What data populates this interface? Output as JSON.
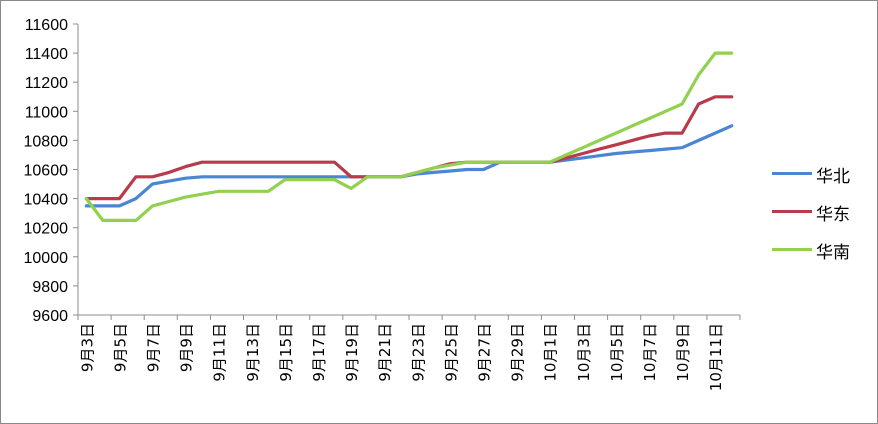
{
  "chart_data": {
    "type": "line",
    "title": "",
    "xlabel": "",
    "ylabel": "",
    "ylim": [
      9600,
      11600
    ],
    "ytick_step": 200,
    "grid": false,
    "legend_position": "right",
    "categories": [
      "9月3日",
      "9月4日",
      "9月5日",
      "9月6日",
      "9月7日",
      "9月8日",
      "9月9日",
      "9月10日",
      "9月11日",
      "9月12日",
      "9月13日",
      "9月14日",
      "9月15日",
      "9月16日",
      "9月17日",
      "9月18日",
      "9月19日",
      "9月20日",
      "9月21日",
      "9月22日",
      "9月23日",
      "9月24日",
      "9月25日",
      "9月26日",
      "9月27日",
      "9月28日",
      "9月29日",
      "9月30日",
      "10月1日",
      "10月2日",
      "10月3日",
      "10月4日",
      "10月5日",
      "10月6日",
      "10月7日",
      "10月8日",
      "10月9日",
      "10月10日",
      "10月11日",
      "10月12日"
    ],
    "xtick_labels": [
      "9月3日",
      "9月5日",
      "9月7日",
      "9月9日",
      "9月11日",
      "9月13日",
      "9月15日",
      "9月17日",
      "9月19日",
      "9月21日",
      "9月23日",
      "9月25日",
      "9月27日",
      "9月29日",
      "10月1日",
      "10月3日",
      "10月5日",
      "10月7日",
      "10月9日",
      "10月11日"
    ],
    "series": [
      {
        "name": "华北",
        "color": "#4a86d4",
        "values": [
          10350,
          10350,
          10350,
          10400,
          10500,
          10520,
          10540,
          10550,
          10550,
          10550,
          10550,
          10550,
          10550,
          10550,
          10550,
          10550,
          10550,
          10550,
          10550,
          10550,
          10570,
          10580,
          10590,
          10600,
          10600,
          10650,
          10650,
          10650,
          10650,
          10665,
          10680,
          10695,
          10710,
          10720,
          10730,
          10740,
          10750,
          10800,
          10850,
          10900
        ]
      },
      {
        "name": "华东",
        "color": "#b83a4b",
        "values": [
          10400,
          10400,
          10400,
          10550,
          10550,
          10580,
          10620,
          10650,
          10650,
          10650,
          10650,
          10650,
          10650,
          10650,
          10650,
          10650,
          10550,
          10550,
          10550,
          10550,
          10580,
          10610,
          10640,
          10650,
          10650,
          10650,
          10650,
          10650,
          10650,
          10680,
          10710,
          10740,
          10770,
          10800,
          10830,
          10850,
          10850,
          11050,
          11100,
          11100
        ]
      },
      {
        "name": "华南",
        "color": "#92d050",
        "values": [
          10400,
          10250,
          10250,
          10250,
          10350,
          10380,
          10410,
          10430,
          10450,
          10450,
          10450,
          10450,
          10530,
          10530,
          10530,
          10530,
          10470,
          10550,
          10550,
          10550,
          10580,
          10610,
          10630,
          10650,
          10650,
          10650,
          10650,
          10650,
          10650,
          10700,
          10750,
          10800,
          10850,
          10900,
          10950,
          11000,
          11050,
          11250,
          11400,
          11400
        ]
      }
    ]
  }
}
